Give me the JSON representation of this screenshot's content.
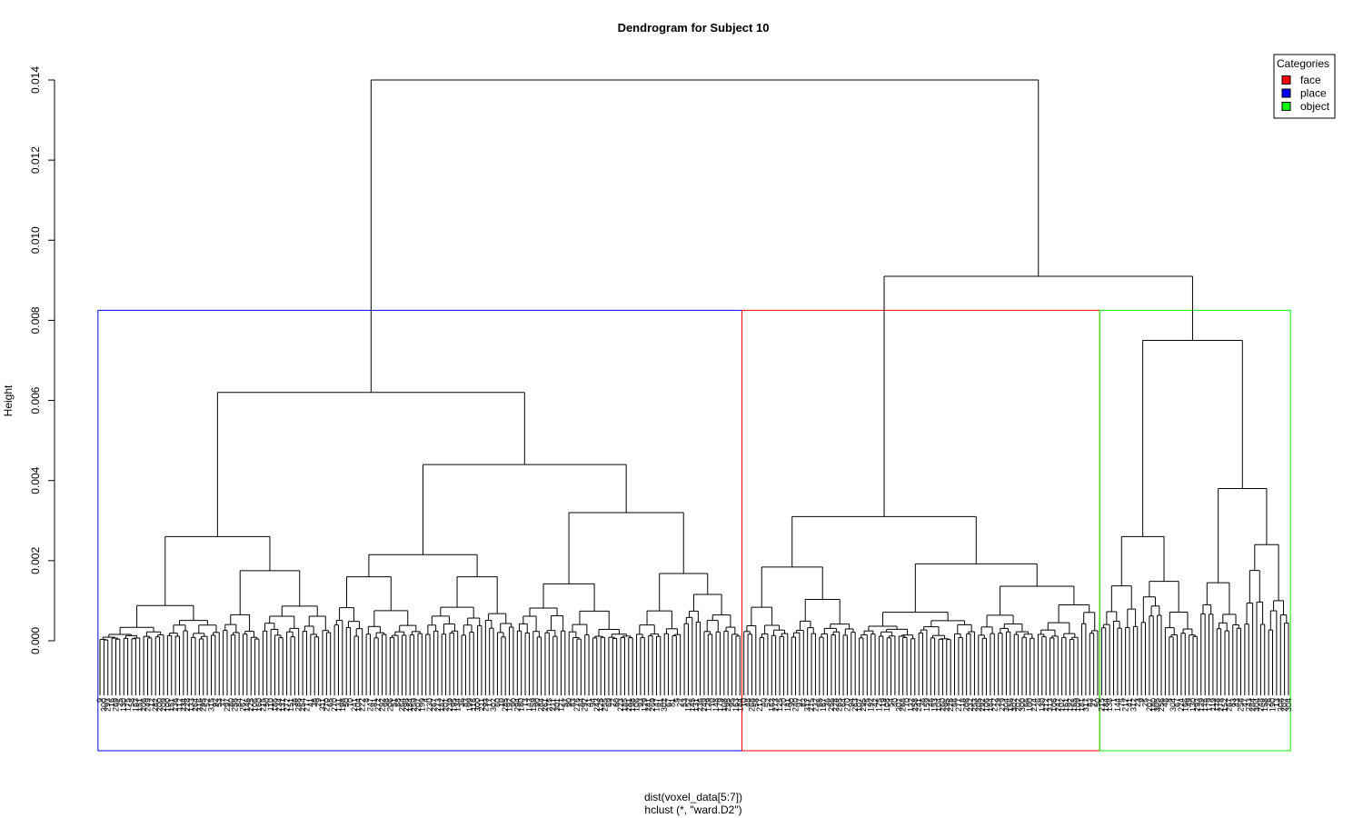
{
  "chart_data": {
    "type": "dendrogram",
    "title": "Dendrogram for Subject 10",
    "ylabel": "Height",
    "xlabel_line1": "dist(voxel_data[5:7])",
    "xlabel_line2": "hclust (*, \"ward.D2\")",
    "ylim": [
      0,
      0.014
    ],
    "yticks": [
      {
        "value": 0.0,
        "label": "0.000"
      },
      {
        "value": 0.002,
        "label": "0.002"
      },
      {
        "value": 0.004,
        "label": "0.004"
      },
      {
        "value": 0.006,
        "label": "0.006"
      },
      {
        "value": 0.008,
        "label": "0.008"
      },
      {
        "value": 0.01,
        "label": "0.010"
      },
      {
        "value": 0.012,
        "label": "0.012"
      },
      {
        "value": 0.014,
        "label": "0.014"
      }
    ],
    "legend": {
      "title": "Categories",
      "placement": "top-right",
      "items": [
        {
          "label": "face",
          "color": "#ff0000"
        },
        {
          "label": "place",
          "color": "#0000ff"
        },
        {
          "label": "object",
          "color": "#00ff00"
        }
      ]
    },
    "leaf_count": 300,
    "merges": [
      {
        "height": 0.014,
        "children": [
          "left-group",
          "right-group"
        ]
      },
      {
        "height": 0.0091,
        "children": [
          "middle-group",
          "right-subgroup"
        ]
      },
      {
        "height": 0.0062,
        "children": [
          "left-a",
          "left-b"
        ]
      },
      {
        "height": 0.0075,
        "children": [
          "right-a",
          "right-b"
        ]
      },
      {
        "height": 0.0044,
        "children": [
          "left-b1",
          "left-b2"
        ]
      },
      {
        "height": 0.0038,
        "children": [
          "right-b1",
          "right-b2"
        ]
      },
      {
        "height": 0.0032,
        "children": [
          "left-b2a",
          "left-b2b"
        ]
      },
      {
        "height": 0.0031,
        "children": [
          "middle-a",
          "middle-b"
        ]
      },
      {
        "height": 0.0026,
        "children": [
          "left-a1",
          "left-a2"
        ]
      },
      {
        "height": 0.0026,
        "children": [
          "right-a1",
          "right-a2"
        ]
      }
    ],
    "clusters": [
      {
        "color": "#0000ff",
        "first_leaf": 0,
        "last_leaf": 161,
        "height": 0.00825
      },
      {
        "color": "#ff0000",
        "first_leaf": 162,
        "last_leaf": 251,
        "height": 0.00825
      },
      {
        "color": "#00ff00",
        "first_leaf": 252,
        "last_leaf": 299,
        "height": 0.00825
      }
    ],
    "grid": false
  }
}
